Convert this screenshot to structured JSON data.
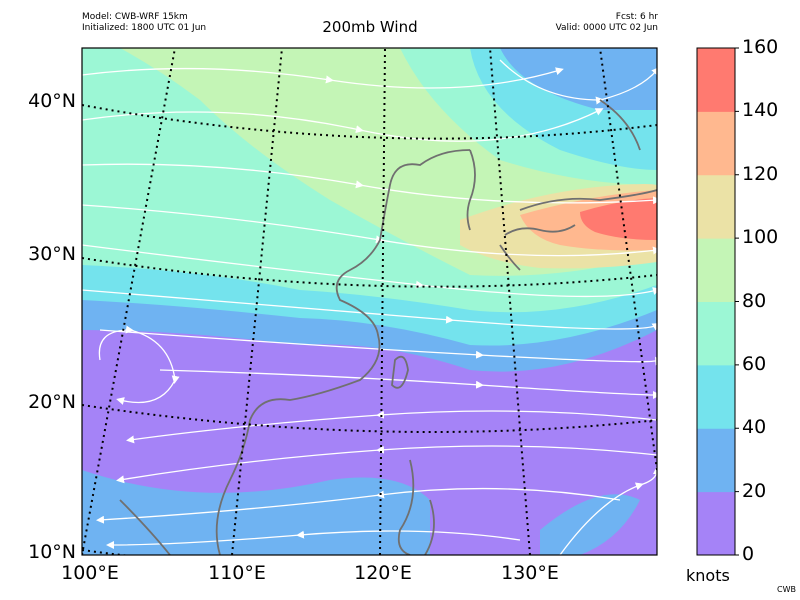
{
  "header": {
    "model": "Model: CWB-WRF 15km",
    "initialized": "Initialized: 1800 UTC 01 Jun",
    "title": "200mb Wind",
    "forecast": "Fcst: 6 hr",
    "valid": "Valid: 0000 UTC 02 Jun"
  },
  "latitude_labels": [
    "40°N",
    "30°N",
    "20°N",
    "10°N"
  ],
  "longitude_labels": [
    "100°E",
    "110°E",
    "120°E",
    "130°E"
  ],
  "colorbar": {
    "unit": "knots",
    "ticks": [
      "0",
      "20",
      "40",
      "60",
      "80",
      "100",
      "120",
      "140",
      "160"
    ],
    "colors": [
      "#a583f7",
      "#6fb3f2",
      "#74e3ed",
      "#9cf7d5",
      "#c4f5b6",
      "#ebe2a6",
      "#ffb88f",
      "#ff7a70"
    ]
  },
  "credit": "CWB",
  "map_layers": [
    "200mb wind speed shading",
    "streamlines",
    "coastlines",
    "lat-lon graticule"
  ]
}
